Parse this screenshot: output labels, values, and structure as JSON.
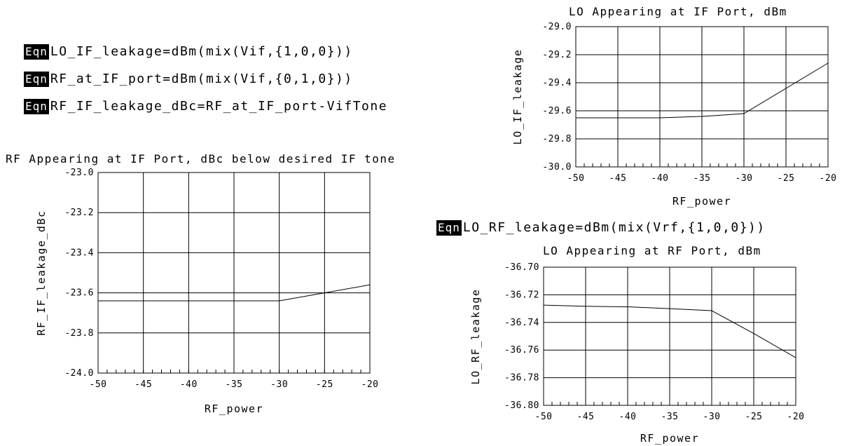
{
  "equations": [
    {
      "badge": "Eqn",
      "text": "LO_IF_leakage=dBm(mix(Vif,{1,0,0}))"
    },
    {
      "badge": "Eqn",
      "text": "RF_at_IF_port=dBm(mix(Vif,{0,1,0}))"
    },
    {
      "badge": "Eqn",
      "text": "RF_IF_leakage_dBc=RF_at_IF_port-VifTone"
    },
    {
      "badge": "Eqn",
      "text": "LO_RF_leakage=dBm(mix(Vrf,{1,0,0}))"
    }
  ],
  "chart_data": [
    {
      "type": "line",
      "title": "LO Appearing at IF Port, dBm",
      "xlabel": "RF_power",
      "ylabel": "LO_IF_leakage",
      "xlim": [
        -50,
        -20
      ],
      "ylim": [
        -30.0,
        -29.0
      ],
      "xticks": [
        "-50",
        "-45",
        "-40",
        "-35",
        "-30",
        "-25",
        "-20"
      ],
      "yticks": [
        "-30.0",
        "-29.8",
        "-29.6",
        "-29.4",
        "-29.2",
        "-29.0"
      ],
      "grid": true,
      "series": [
        {
          "x": [
            -50,
            -40,
            -35,
            -30,
            -25,
            -20
          ],
          "y": [
            -29.65,
            -29.65,
            -29.64,
            -29.62,
            -29.44,
            -29.26
          ]
        }
      ]
    },
    {
      "type": "line",
      "title": "RF Appearing at IF Port, dBc below desired IF tone",
      "xlabel": "RF_power",
      "ylabel": "RF_IF_leakage_dBc",
      "xlim": [
        -50,
        -20
      ],
      "ylim": [
        -24.0,
        -23.0
      ],
      "xticks": [
        "-50",
        "-45",
        "-40",
        "-35",
        "-30",
        "-25",
        "-20"
      ],
      "yticks": [
        "-24.0",
        "-23.8",
        "-23.6",
        "-23.4",
        "-23.2",
        "-23.0"
      ],
      "grid": true,
      "series": [
        {
          "x": [
            -50,
            -40,
            -35,
            -30,
            -25,
            -20
          ],
          "y": [
            -23.64,
            -23.64,
            -23.64,
            -23.64,
            -23.6,
            -23.56
          ]
        }
      ]
    },
    {
      "type": "line",
      "title": "LO Appearing at RF Port, dBm",
      "xlabel": "RF_power",
      "ylabel": "LO_RF_leakage",
      "xlim": [
        -50,
        -20
      ],
      "ylim": [
        -36.8,
        -36.7
      ],
      "xticks": [
        "-50",
        "-45",
        "-40",
        "-35",
        "-30",
        "-25",
        "-20"
      ],
      "yticks": [
        "-36.80",
        "-36.78",
        "-36.76",
        "-36.74",
        "-36.72",
        "-36.70"
      ],
      "grid": true,
      "series": [
        {
          "x": [
            -50,
            -45,
            -40,
            -35,
            -30,
            -25,
            -20
          ],
          "y": [
            -36.7275,
            -36.7283,
            -36.7287,
            -36.73,
            -36.7315,
            -36.748,
            -36.7655
          ]
        }
      ]
    }
  ]
}
